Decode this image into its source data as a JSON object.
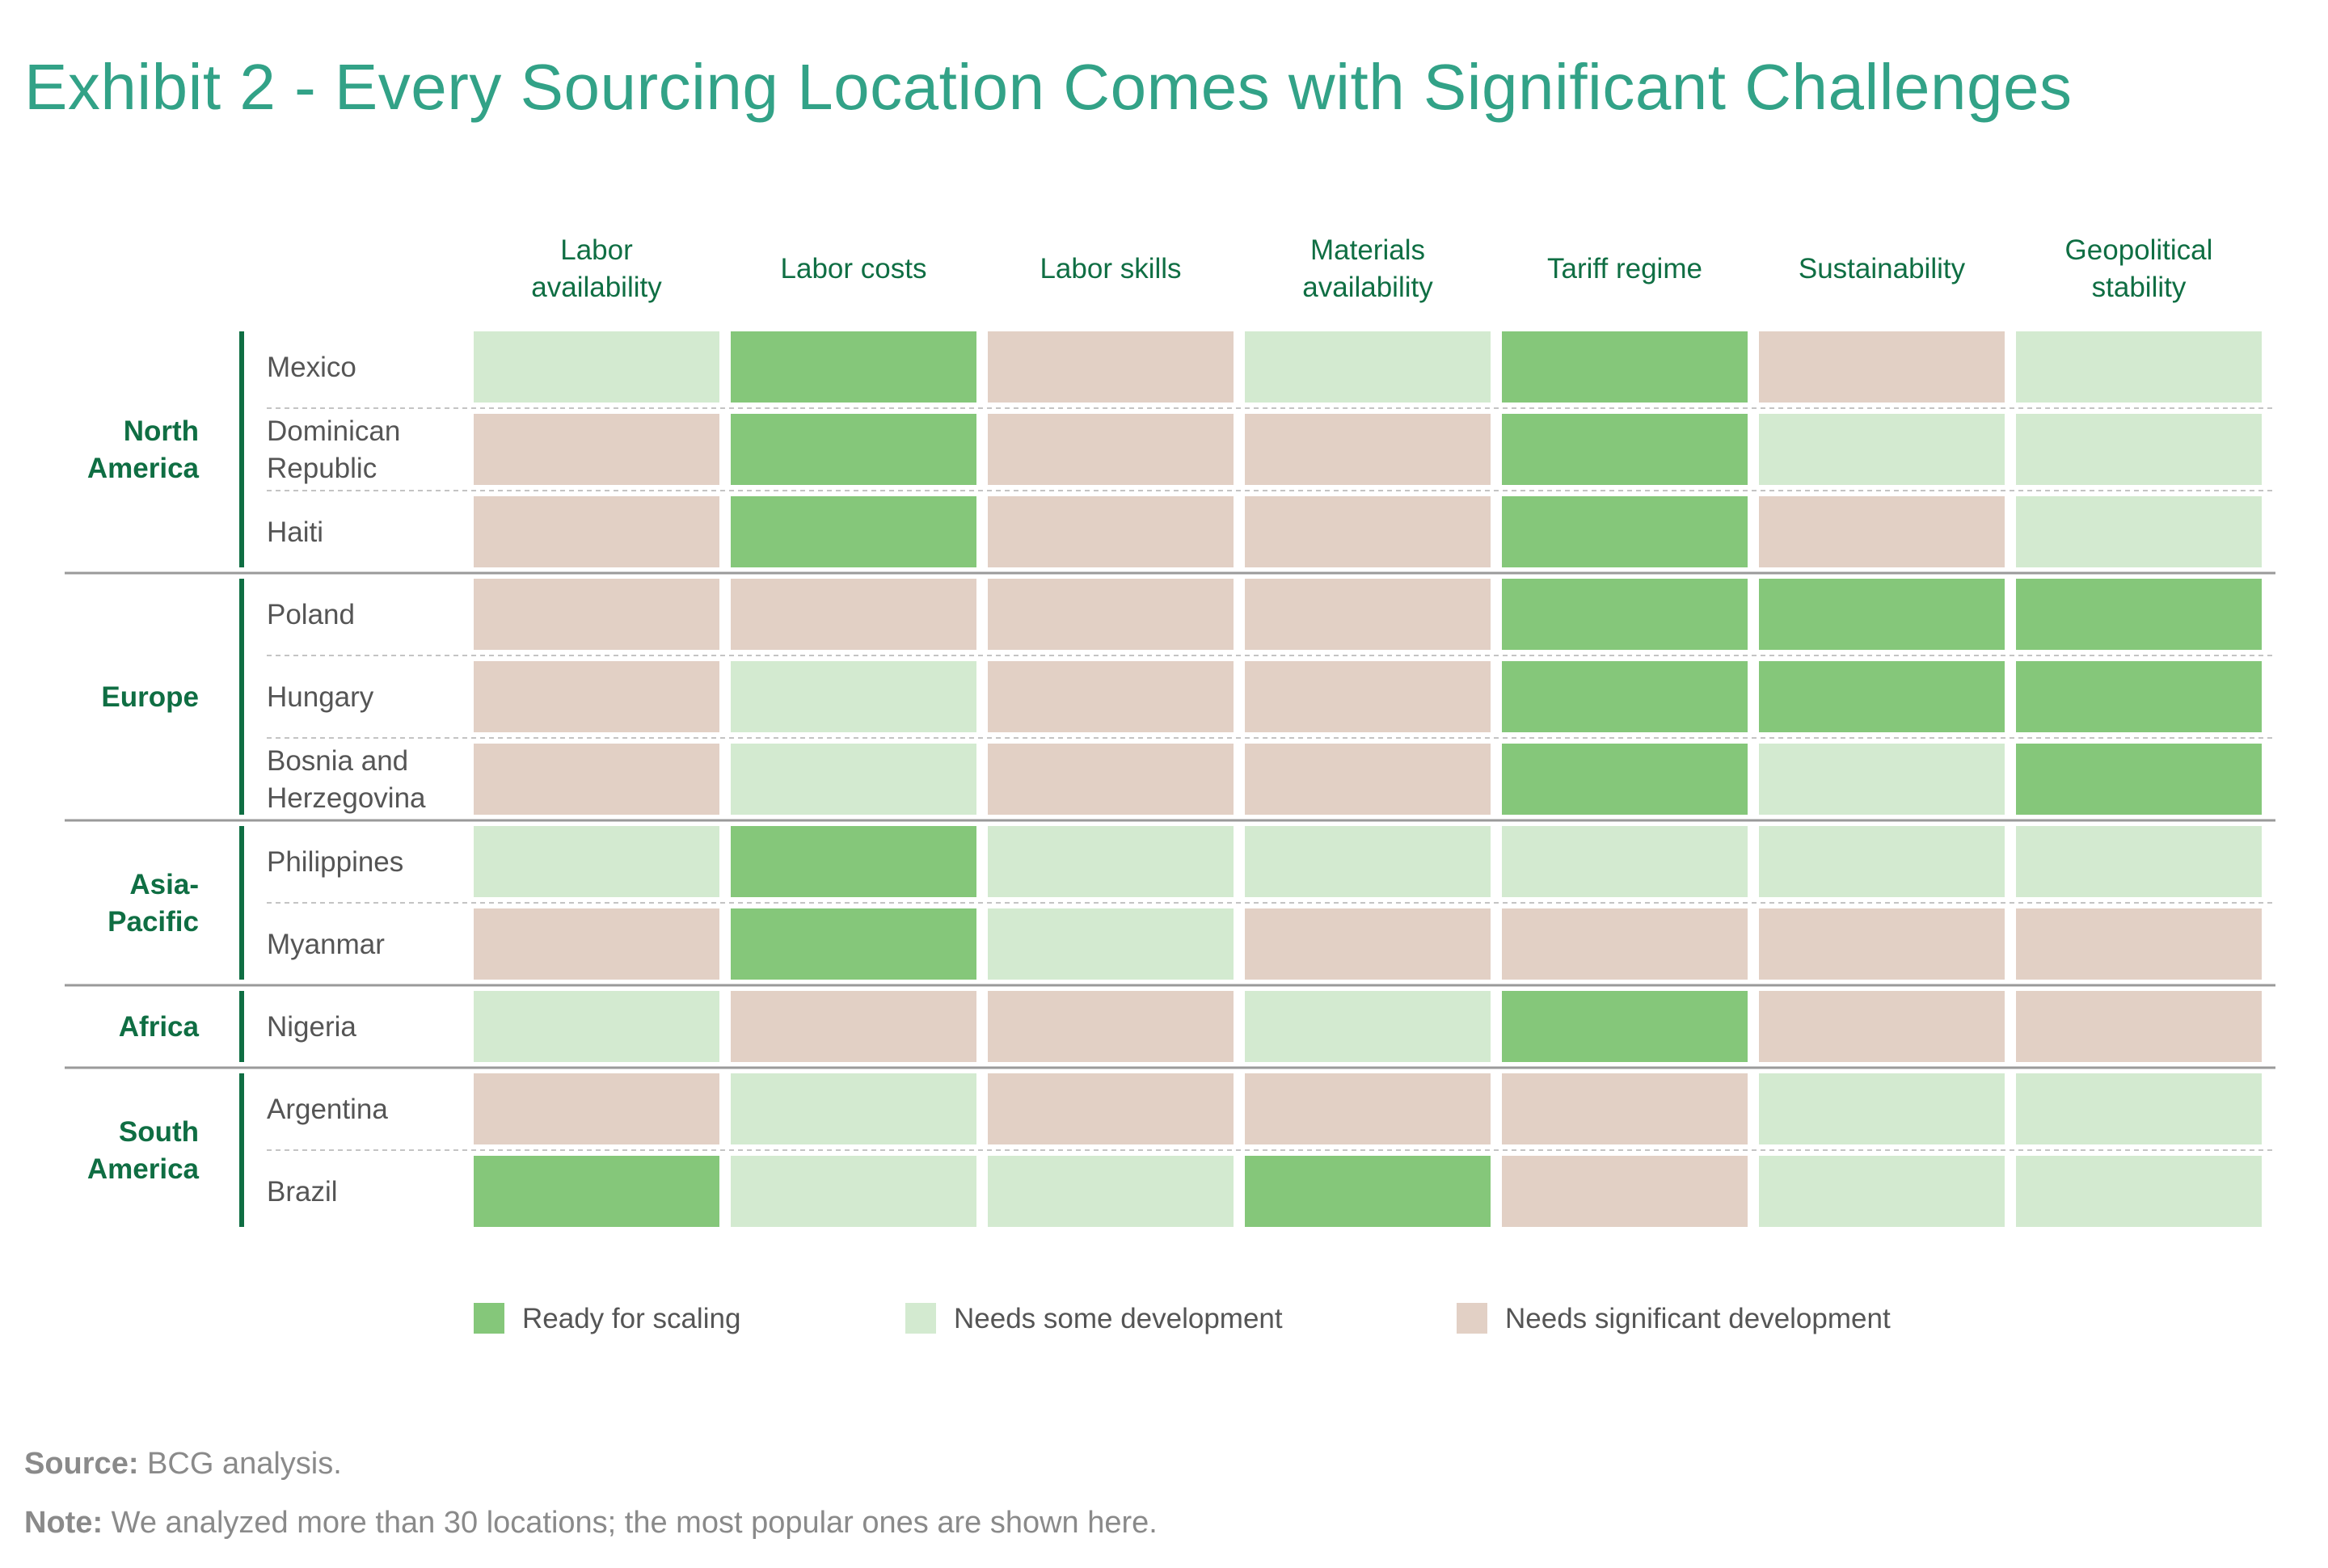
{
  "title": "Exhibit 2 - Every Sourcing Location Comes with Significant Challenges",
  "footer": {
    "source_label": "Source:",
    "source_text": "BCG analysis.",
    "note_label": "Note:",
    "note_text": "We analyzed more than 30 locations; the most popular ones are shown here."
  },
  "colors": {
    "ready": "#85c77a",
    "some": "#d3ead0",
    "significant": "#e2d0c5",
    "accent": "#0f6e43",
    "title": "#32a287"
  },
  "chart_data": {
    "type": "heatmap",
    "title": "Exhibit 2 - Every Sourcing Location Comes with Significant Challenges",
    "columns": [
      [
        "Labor",
        "availability"
      ],
      [
        "Labor costs"
      ],
      [
        "Labor skills"
      ],
      [
        "Materials",
        "availability"
      ],
      [
        "Tariff regime"
      ],
      [
        "Sustainability"
      ],
      [
        "Geopolitical",
        "stability"
      ]
    ],
    "legend": [
      {
        "key": "ready",
        "label": "Ready for scaling"
      },
      {
        "key": "some",
        "label": "Needs some development"
      },
      {
        "key": "significant",
        "label": "Needs significant development"
      }
    ],
    "regions": [
      {
        "name": [
          "North",
          "America"
        ],
        "countries": [
          {
            "name": [
              "Mexico"
            ],
            "values": [
              "some",
              "ready",
              "significant",
              "some",
              "ready",
              "significant",
              "some"
            ]
          },
          {
            "name": [
              "Dominican",
              "Republic"
            ],
            "values": [
              "significant",
              "ready",
              "significant",
              "significant",
              "ready",
              "some",
              "some"
            ]
          },
          {
            "name": [
              "Haiti"
            ],
            "values": [
              "significant",
              "ready",
              "significant",
              "significant",
              "ready",
              "significant",
              "some"
            ]
          }
        ]
      },
      {
        "name": [
          "Europe"
        ],
        "countries": [
          {
            "name": [
              "Poland"
            ],
            "values": [
              "significant",
              "significant",
              "significant",
              "significant",
              "ready",
              "ready",
              "ready"
            ]
          },
          {
            "name": [
              "Hungary"
            ],
            "values": [
              "significant",
              "some",
              "significant",
              "significant",
              "ready",
              "ready",
              "ready"
            ]
          },
          {
            "name": [
              "Bosnia and",
              "Herzegovina"
            ],
            "values": [
              "significant",
              "some",
              "significant",
              "significant",
              "ready",
              "some",
              "ready"
            ]
          }
        ]
      },
      {
        "name": [
          "Asia-",
          "Pacific"
        ],
        "countries": [
          {
            "name": [
              "Philippines"
            ],
            "values": [
              "some",
              "ready",
              "some",
              "some",
              "some",
              "some",
              "some"
            ]
          },
          {
            "name": [
              "Myanmar"
            ],
            "values": [
              "significant",
              "ready",
              "some",
              "significant",
              "significant",
              "significant",
              "significant"
            ]
          }
        ]
      },
      {
        "name": [
          "Africa"
        ],
        "countries": [
          {
            "name": [
              "Nigeria"
            ],
            "values": [
              "some",
              "significant",
              "significant",
              "some",
              "ready",
              "significant",
              "significant"
            ]
          }
        ]
      },
      {
        "name": [
          "South",
          "America"
        ],
        "countries": [
          {
            "name": [
              "Argentina"
            ],
            "values": [
              "significant",
              "some",
              "significant",
              "significant",
              "significant",
              "some",
              "some"
            ]
          },
          {
            "name": [
              "Brazil"
            ],
            "values": [
              "ready",
              "some",
              "some",
              "ready",
              "significant",
              "some",
              "some"
            ]
          }
        ]
      }
    ]
  }
}
